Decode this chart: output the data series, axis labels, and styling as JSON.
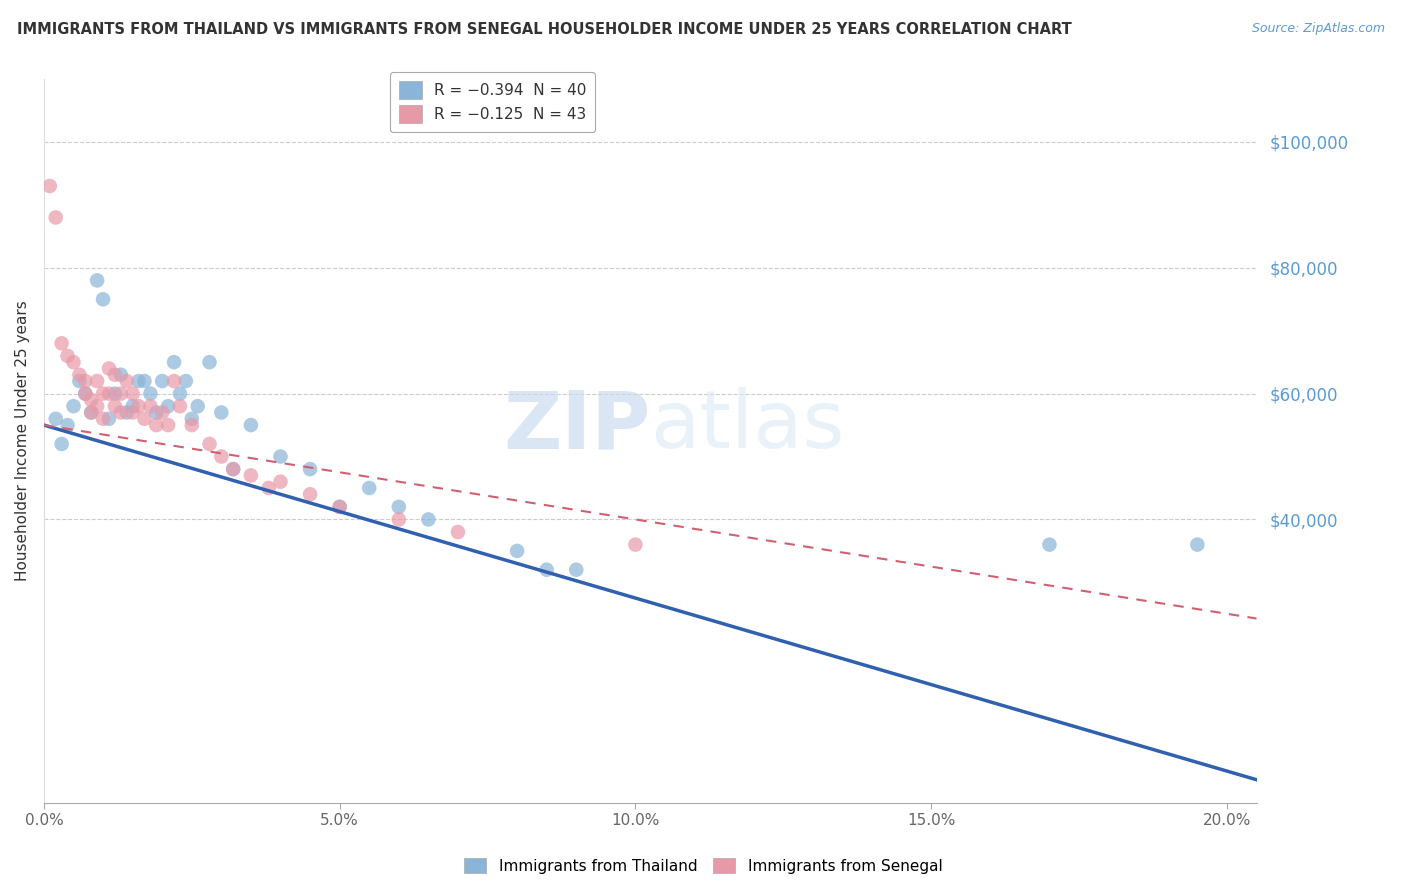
{
  "title": "IMMIGRANTS FROM THAILAND VS IMMIGRANTS FROM SENEGAL HOUSEHOLDER INCOME UNDER 25 YEARS CORRELATION CHART",
  "source": "Source: ZipAtlas.com",
  "ylabel": "Householder Income Under 25 years",
  "xlabel_ticks": [
    "0.0%",
    "5.0%",
    "10.0%",
    "15.0%",
    "20.0%"
  ],
  "xlabel_vals": [
    0.0,
    0.05,
    0.1,
    0.15,
    0.2
  ],
  "ytick_labels": [
    "$40,000",
    "$60,000",
    "$80,000",
    "$100,000"
  ],
  "ytick_vals": [
    40000,
    60000,
    80000,
    100000
  ],
  "xlim": [
    0.0,
    0.205
  ],
  "ylim": [
    -5000,
    110000
  ],
  "thailand_color": "#8ab4d8",
  "senegal_color": "#e899a8",
  "thailand_line_color": "#3060b0",
  "senegal_line_color": "#d06070",
  "watermark_zip": "ZIP",
  "watermark_atlas": "atlas",
  "thailand_x": [
    0.002,
    0.003,
    0.004,
    0.005,
    0.006,
    0.007,
    0.008,
    0.009,
    0.01,
    0.011,
    0.012,
    0.013,
    0.014,
    0.015,
    0.016,
    0.017,
    0.018,
    0.019,
    0.02,
    0.021,
    0.022,
    0.023,
    0.024,
    0.025,
    0.026,
    0.028,
    0.03,
    0.032,
    0.035,
    0.04,
    0.045,
    0.05,
    0.055,
    0.06,
    0.065,
    0.08,
    0.085,
    0.09,
    0.17,
    0.195
  ],
  "thailand_y": [
    56000,
    52000,
    55000,
    58000,
    62000,
    60000,
    57000,
    78000,
    75000,
    56000,
    60000,
    63000,
    57000,
    58000,
    62000,
    62000,
    60000,
    57000,
    62000,
    58000,
    65000,
    60000,
    62000,
    56000,
    58000,
    65000,
    57000,
    48000,
    55000,
    50000,
    48000,
    42000,
    45000,
    42000,
    40000,
    35000,
    32000,
    32000,
    36000,
    36000
  ],
  "senegal_x": [
    0.001,
    0.002,
    0.003,
    0.004,
    0.005,
    0.006,
    0.007,
    0.007,
    0.008,
    0.008,
    0.009,
    0.009,
    0.01,
    0.01,
    0.011,
    0.011,
    0.012,
    0.012,
    0.013,
    0.013,
    0.014,
    0.015,
    0.015,
    0.016,
    0.017,
    0.018,
    0.019,
    0.02,
    0.021,
    0.022,
    0.023,
    0.025,
    0.028,
    0.03,
    0.032,
    0.035,
    0.038,
    0.04,
    0.045,
    0.05,
    0.06,
    0.07,
    0.1
  ],
  "senegal_y": [
    93000,
    88000,
    68000,
    66000,
    65000,
    63000,
    62000,
    60000,
    59000,
    57000,
    62000,
    58000,
    60000,
    56000,
    64000,
    60000,
    58000,
    63000,
    60000,
    57000,
    62000,
    60000,
    57000,
    58000,
    56000,
    58000,
    55000,
    57000,
    55000,
    62000,
    58000,
    55000,
    52000,
    50000,
    48000,
    47000,
    45000,
    46000,
    44000,
    42000,
    40000,
    38000,
    36000
  ]
}
